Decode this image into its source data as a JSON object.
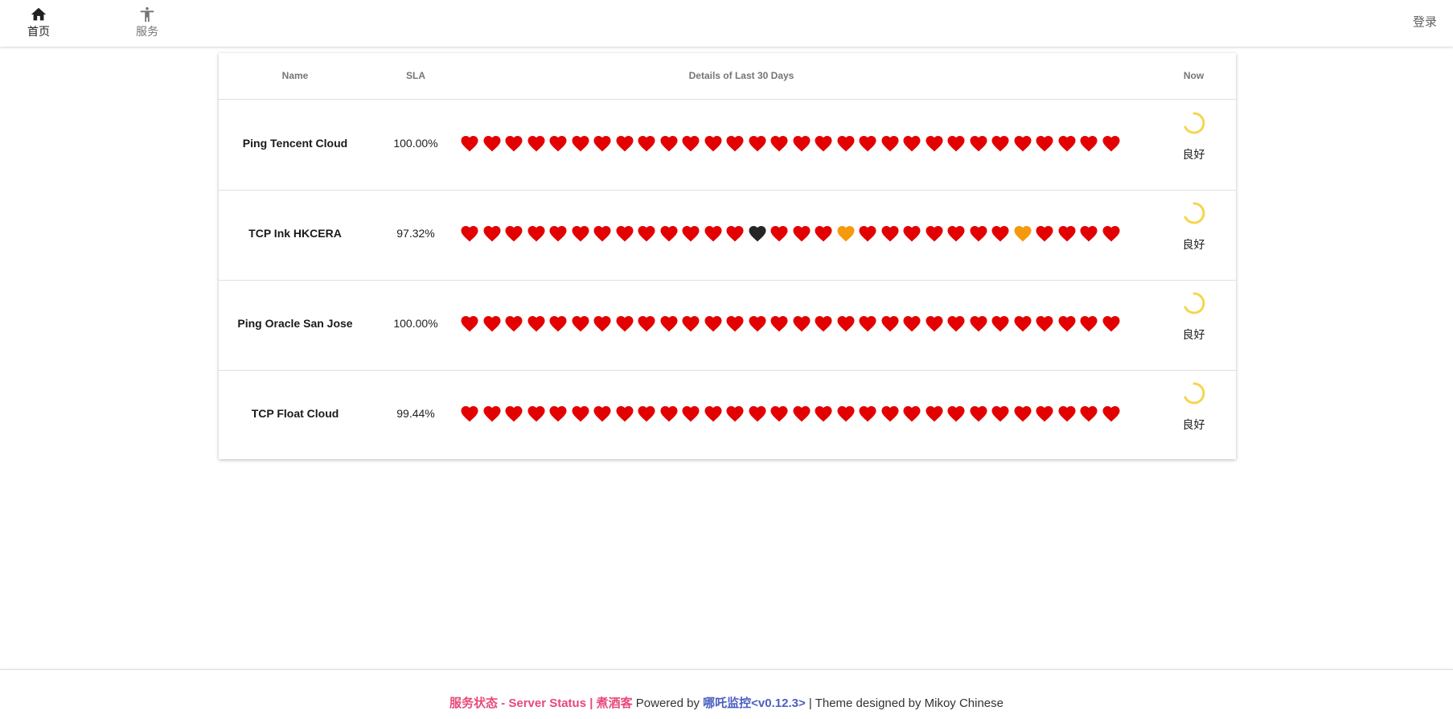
{
  "nav": {
    "items": [
      {
        "label": "首页",
        "icon": "home-icon",
        "active": true
      },
      {
        "label": "服务",
        "icon": "accessibility-icon",
        "active": false
      }
    ],
    "login_label": "登录"
  },
  "table": {
    "headers": {
      "name": "Name",
      "sla": "SLA",
      "details": "Details of Last 30 Days",
      "now": "Now"
    },
    "rows": [
      {
        "name": "Ping Tencent Cloud",
        "sla": "100.00%",
        "days": [
          "up",
          "up",
          "up",
          "up",
          "up",
          "up",
          "up",
          "up",
          "up",
          "up",
          "up",
          "up",
          "up",
          "up",
          "up",
          "up",
          "up",
          "up",
          "up",
          "up",
          "up",
          "up",
          "up",
          "up",
          "up",
          "up",
          "up",
          "up",
          "up",
          "up"
        ],
        "status": "良好"
      },
      {
        "name": "TCP Ink HKCERA",
        "sla": "97.32%",
        "days": [
          "up",
          "up",
          "up",
          "up",
          "up",
          "up",
          "up",
          "up",
          "up",
          "up",
          "up",
          "up",
          "up",
          "down",
          "up",
          "up",
          "up",
          "partial",
          "up",
          "up",
          "up",
          "up",
          "up",
          "up",
          "up",
          "partial",
          "up",
          "up",
          "up",
          "up"
        ],
        "status": "良好"
      },
      {
        "name": "Ping Oracle San Jose",
        "sla": "100.00%",
        "days": [
          "up",
          "up",
          "up",
          "up",
          "up",
          "up",
          "up",
          "up",
          "up",
          "up",
          "up",
          "up",
          "up",
          "up",
          "up",
          "up",
          "up",
          "up",
          "up",
          "up",
          "up",
          "up",
          "up",
          "up",
          "up",
          "up",
          "up",
          "up",
          "up",
          "up"
        ],
        "status": "良好"
      },
      {
        "name": "TCP Float Cloud",
        "sla": "99.44%",
        "days": [
          "up",
          "up",
          "up",
          "up",
          "up",
          "up",
          "up",
          "up",
          "up",
          "up",
          "up",
          "up",
          "up",
          "up",
          "up",
          "up",
          "up",
          "up",
          "up",
          "up",
          "up",
          "up",
          "up",
          "up",
          "up",
          "up",
          "up",
          "up",
          "up",
          "up"
        ],
        "status": "良好"
      }
    ]
  },
  "colors": {
    "up": "#e30000",
    "partial": "#f59a0c",
    "down": "#262626",
    "spinner": "#f4d54e",
    "brand": "#e8497a",
    "link": "#4a5fc1"
  },
  "footer": {
    "brand": "服务状态 - Server Status | 煮酒客",
    "powered_prefix": " Powered by ",
    "powered_link": "哪吒监控<v0.12.3>",
    "suffix": " | Theme designed by Mikoy Chinese"
  }
}
